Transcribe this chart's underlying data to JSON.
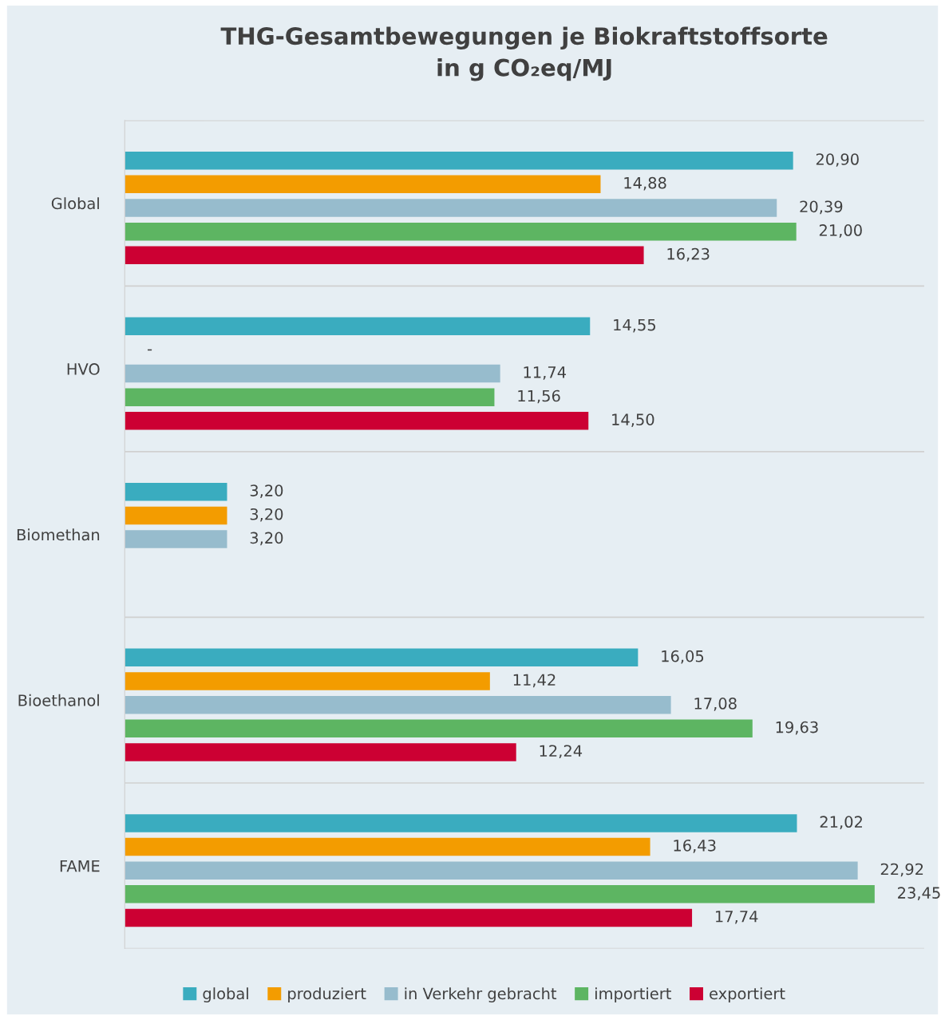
{
  "chart_data": {
    "type": "bar",
    "orientation": "horizontal",
    "title": "THG-Gesamtbewegungen je Biokraftstoffsorte\nin g CO₂eq/MJ",
    "categories": [
      "Global",
      "HVO",
      "Biomethan",
      "Bioethanol",
      "FAME"
    ],
    "series": [
      {
        "name": "global",
        "color": "#3aacbf",
        "values": [
          20.9,
          14.55,
          3.2,
          16.05,
          21.02
        ],
        "value_labels": [
          "20,90",
          "14,55",
          "3,20",
          "16,05",
          "21,02"
        ]
      },
      {
        "name": "produziert",
        "color": "#f39c00",
        "values": [
          14.88,
          null,
          3.2,
          11.42,
          16.43
        ],
        "value_labels": [
          "14,88",
          "-",
          "3,20",
          "11,42",
          "16,43"
        ]
      },
      {
        "name": "in Verkehr gebracht",
        "color": "#97bccd",
        "values": [
          20.39,
          11.74,
          3.2,
          17.08,
          22.92
        ],
        "value_labels": [
          "20,39",
          "11,74",
          "3,20",
          "17,08",
          "22,92"
        ]
      },
      {
        "name": "importiert",
        "color": "#5db562",
        "values": [
          21.0,
          11.56,
          null,
          19.63,
          23.45
        ],
        "value_labels": [
          "21,00",
          "11,56",
          null,
          "19,63",
          "23,45"
        ]
      },
      {
        "name": "exportiert",
        "color": "#cc0033",
        "values": [
          16.23,
          14.5,
          null,
          12.24,
          17.74
        ],
        "value_labels": [
          "16,23",
          "14,50",
          null,
          "12,24",
          "17,74"
        ]
      }
    ],
    "xlim": [
      0,
      25
    ],
    "tick_labels": "y",
    "grid": "y",
    "legend": "bottom"
  }
}
